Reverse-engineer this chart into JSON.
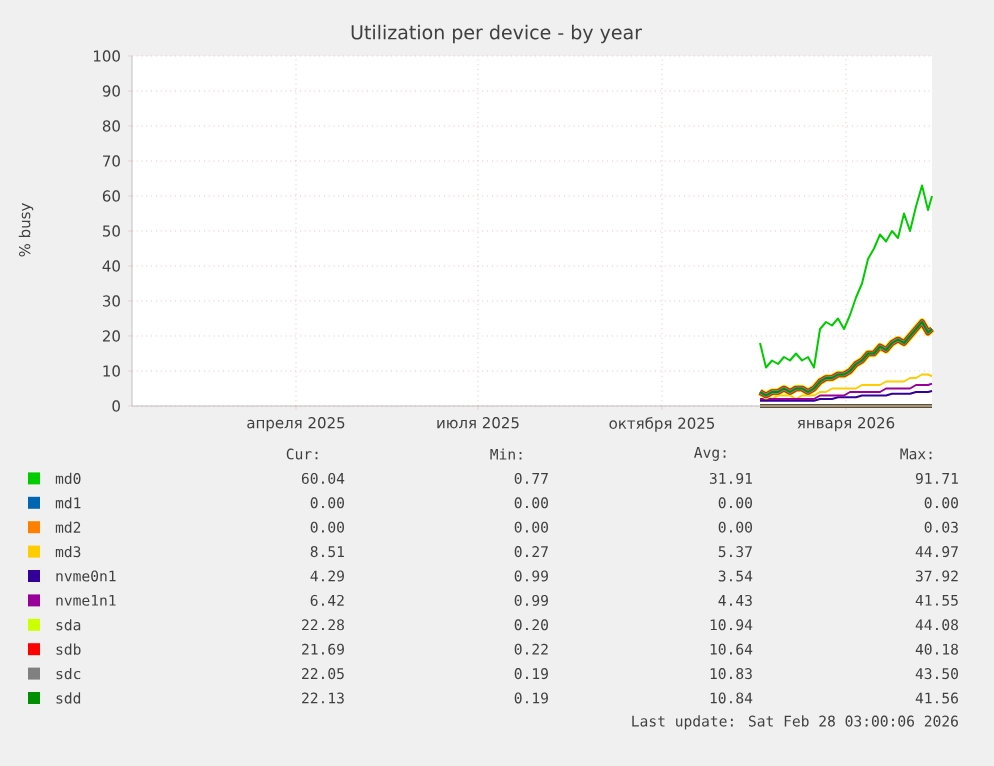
{
  "chart_data": {
    "type": "line",
    "title": "Utilization per device - by year",
    "ylabel": "% busy",
    "x": [
      "2025-12-04",
      "2025-12-07",
      "2025-12-10",
      "2025-12-13",
      "2025-12-16",
      "2025-12-19",
      "2025-12-22",
      "2025-12-25",
      "2025-12-28",
      "2025-12-31",
      "2026-01-03",
      "2026-01-06",
      "2026-01-09",
      "2026-01-12",
      "2026-01-15",
      "2026-01-18",
      "2026-01-21",
      "2026-01-24",
      "2026-01-27",
      "2026-01-30",
      "2026-02-02",
      "2026-02-05",
      "2026-02-08",
      "2026-02-11",
      "2026-02-14",
      "2026-02-17",
      "2026-02-20",
      "2026-02-23",
      "2026-02-26",
      "2026-02-28"
    ],
    "series": [
      {
        "name": "md0",
        "color": "#00cc00",
        "values": [
          18,
          11,
          13,
          12,
          14,
          13,
          15,
          13,
          14,
          11,
          22,
          24,
          23,
          25,
          22,
          26,
          31,
          35,
          42,
          45,
          49,
          47,
          50,
          48,
          55,
          50,
          57,
          63,
          56,
          60
        ]
      },
      {
        "name": "md1",
        "color": "#0066b3",
        "values": [
          0,
          0,
          0,
          0,
          0,
          0,
          0,
          0,
          0,
          0,
          0,
          0,
          0,
          0,
          0,
          0,
          0,
          0,
          0,
          0,
          0,
          0,
          0,
          0,
          0,
          0,
          0,
          0,
          0,
          0
        ]
      },
      {
        "name": "md2",
        "color": "#ff8000",
        "values": [
          0,
          0,
          0,
          0,
          0,
          0,
          0,
          0,
          0,
          0,
          0,
          0,
          0,
          0,
          0,
          0,
          0,
          0,
          0,
          0,
          0,
          0,
          0,
          0,
          0,
          0,
          0,
          0,
          0,
          0
        ]
      },
      {
        "name": "md3",
        "color": "#ffcc00",
        "values": [
          3,
          3,
          2,
          3,
          3,
          3,
          2,
          3,
          3,
          3,
          4,
          4,
          5,
          5,
          5,
          5,
          5,
          6,
          6,
          6,
          6,
          7,
          7,
          7,
          7,
          8,
          8,
          9,
          9,
          8.5
        ]
      },
      {
        "name": "nvme0n1",
        "color": "#330099",
        "values": [
          1.5,
          1.5,
          1.5,
          1.5,
          1.5,
          1.5,
          1.5,
          1.5,
          1.5,
          1.5,
          2,
          2,
          2,
          2.5,
          2.5,
          2.5,
          2.5,
          3,
          3,
          3,
          3,
          3,
          3.5,
          3.5,
          3.5,
          3.5,
          4,
          4,
          4,
          4.3
        ]
      },
      {
        "name": "nvme1n1",
        "color": "#990099",
        "values": [
          2,
          2,
          2,
          2,
          2,
          2,
          2,
          2,
          2,
          2,
          3,
          3,
          3,
          3,
          3,
          4,
          4,
          4,
          4,
          4,
          4,
          5,
          5,
          5,
          5,
          5,
          6,
          6,
          6,
          6.4
        ]
      },
      {
        "name": "sda",
        "color": "#ccff00",
        "values": [
          4,
          3,
          4,
          4,
          5,
          4,
          5,
          5,
          4,
          5,
          7,
          8,
          8,
          9,
          9,
          10,
          12,
          13,
          15,
          15,
          17,
          16,
          18,
          19,
          18,
          20,
          22,
          24,
          21,
          22
        ]
      },
      {
        "name": "sdb",
        "color": "#ff0000",
        "values": [
          4,
          3,
          4,
          4,
          5,
          4,
          5,
          5,
          4,
          5,
          7,
          8,
          8,
          9,
          9,
          10,
          12,
          13,
          15,
          15,
          17,
          16,
          18,
          19,
          18,
          20,
          22,
          24,
          21,
          22
        ]
      },
      {
        "name": "sdc",
        "color": "#808080",
        "values": [
          4,
          3,
          4,
          4,
          5,
          4,
          5,
          5,
          4,
          5,
          7,
          8,
          8,
          9,
          9,
          10,
          12,
          13,
          15,
          15,
          17,
          16,
          18,
          19,
          18,
          20,
          22,
          24,
          21,
          22
        ]
      },
      {
        "name": "sdd",
        "color": "#008f00",
        "values": [
          4,
          3,
          4,
          4,
          5,
          4,
          5,
          5,
          4,
          5,
          7,
          8,
          8,
          9,
          9,
          10,
          12,
          13,
          15,
          15,
          17,
          16,
          18,
          19,
          18,
          20,
          22,
          24,
          21,
          22
        ]
      }
    ],
    "xlim": [
      "2025-01-24",
      "2026-02-28"
    ],
    "xticks": [
      {
        "value": "2025-04-16",
        "label": "апреля 2025"
      },
      {
        "value": "2025-07-16",
        "label": "июля 2025"
      },
      {
        "value": "2025-10-16",
        "label": "октября 2025"
      },
      {
        "value": "2026-01-16",
        "label": "января 2026"
      }
    ],
    "ylim": [
      0,
      100
    ],
    "yticks": [
      0,
      10,
      20,
      30,
      40,
      50,
      60,
      70,
      80,
      90,
      100
    ],
    "grid": true,
    "legend": "bottom",
    "marker": "none",
    "line_style": "solid",
    "annotations": [
      "Cur:",
      "Min:",
      "Avg:",
      "Max:",
      "60.04",
      "0.77",
      "31.91",
      "91.71",
      "0.00",
      "0.00",
      "0.00",
      "0.00",
      "0.00",
      "0.00",
      "0.00",
      "0.03",
      "8.51",
      "0.27",
      "5.37",
      "44.97",
      "4.29",
      "0.99",
      "3.54",
      "37.92",
      "6.42",
      "0.99",
      "4.43",
      "41.55",
      "22.28",
      "0.20",
      "10.94",
      "44.08",
      "21.69",
      "0.22",
      "10.64",
      "40.18",
      "22.05",
      "0.19",
      "10.83",
      "43.50",
      "22.13",
      "0.19",
      "10.84",
      "41.56",
      "Last update: Sat Feb 28 03:00:06 2026"
    ]
  }
}
